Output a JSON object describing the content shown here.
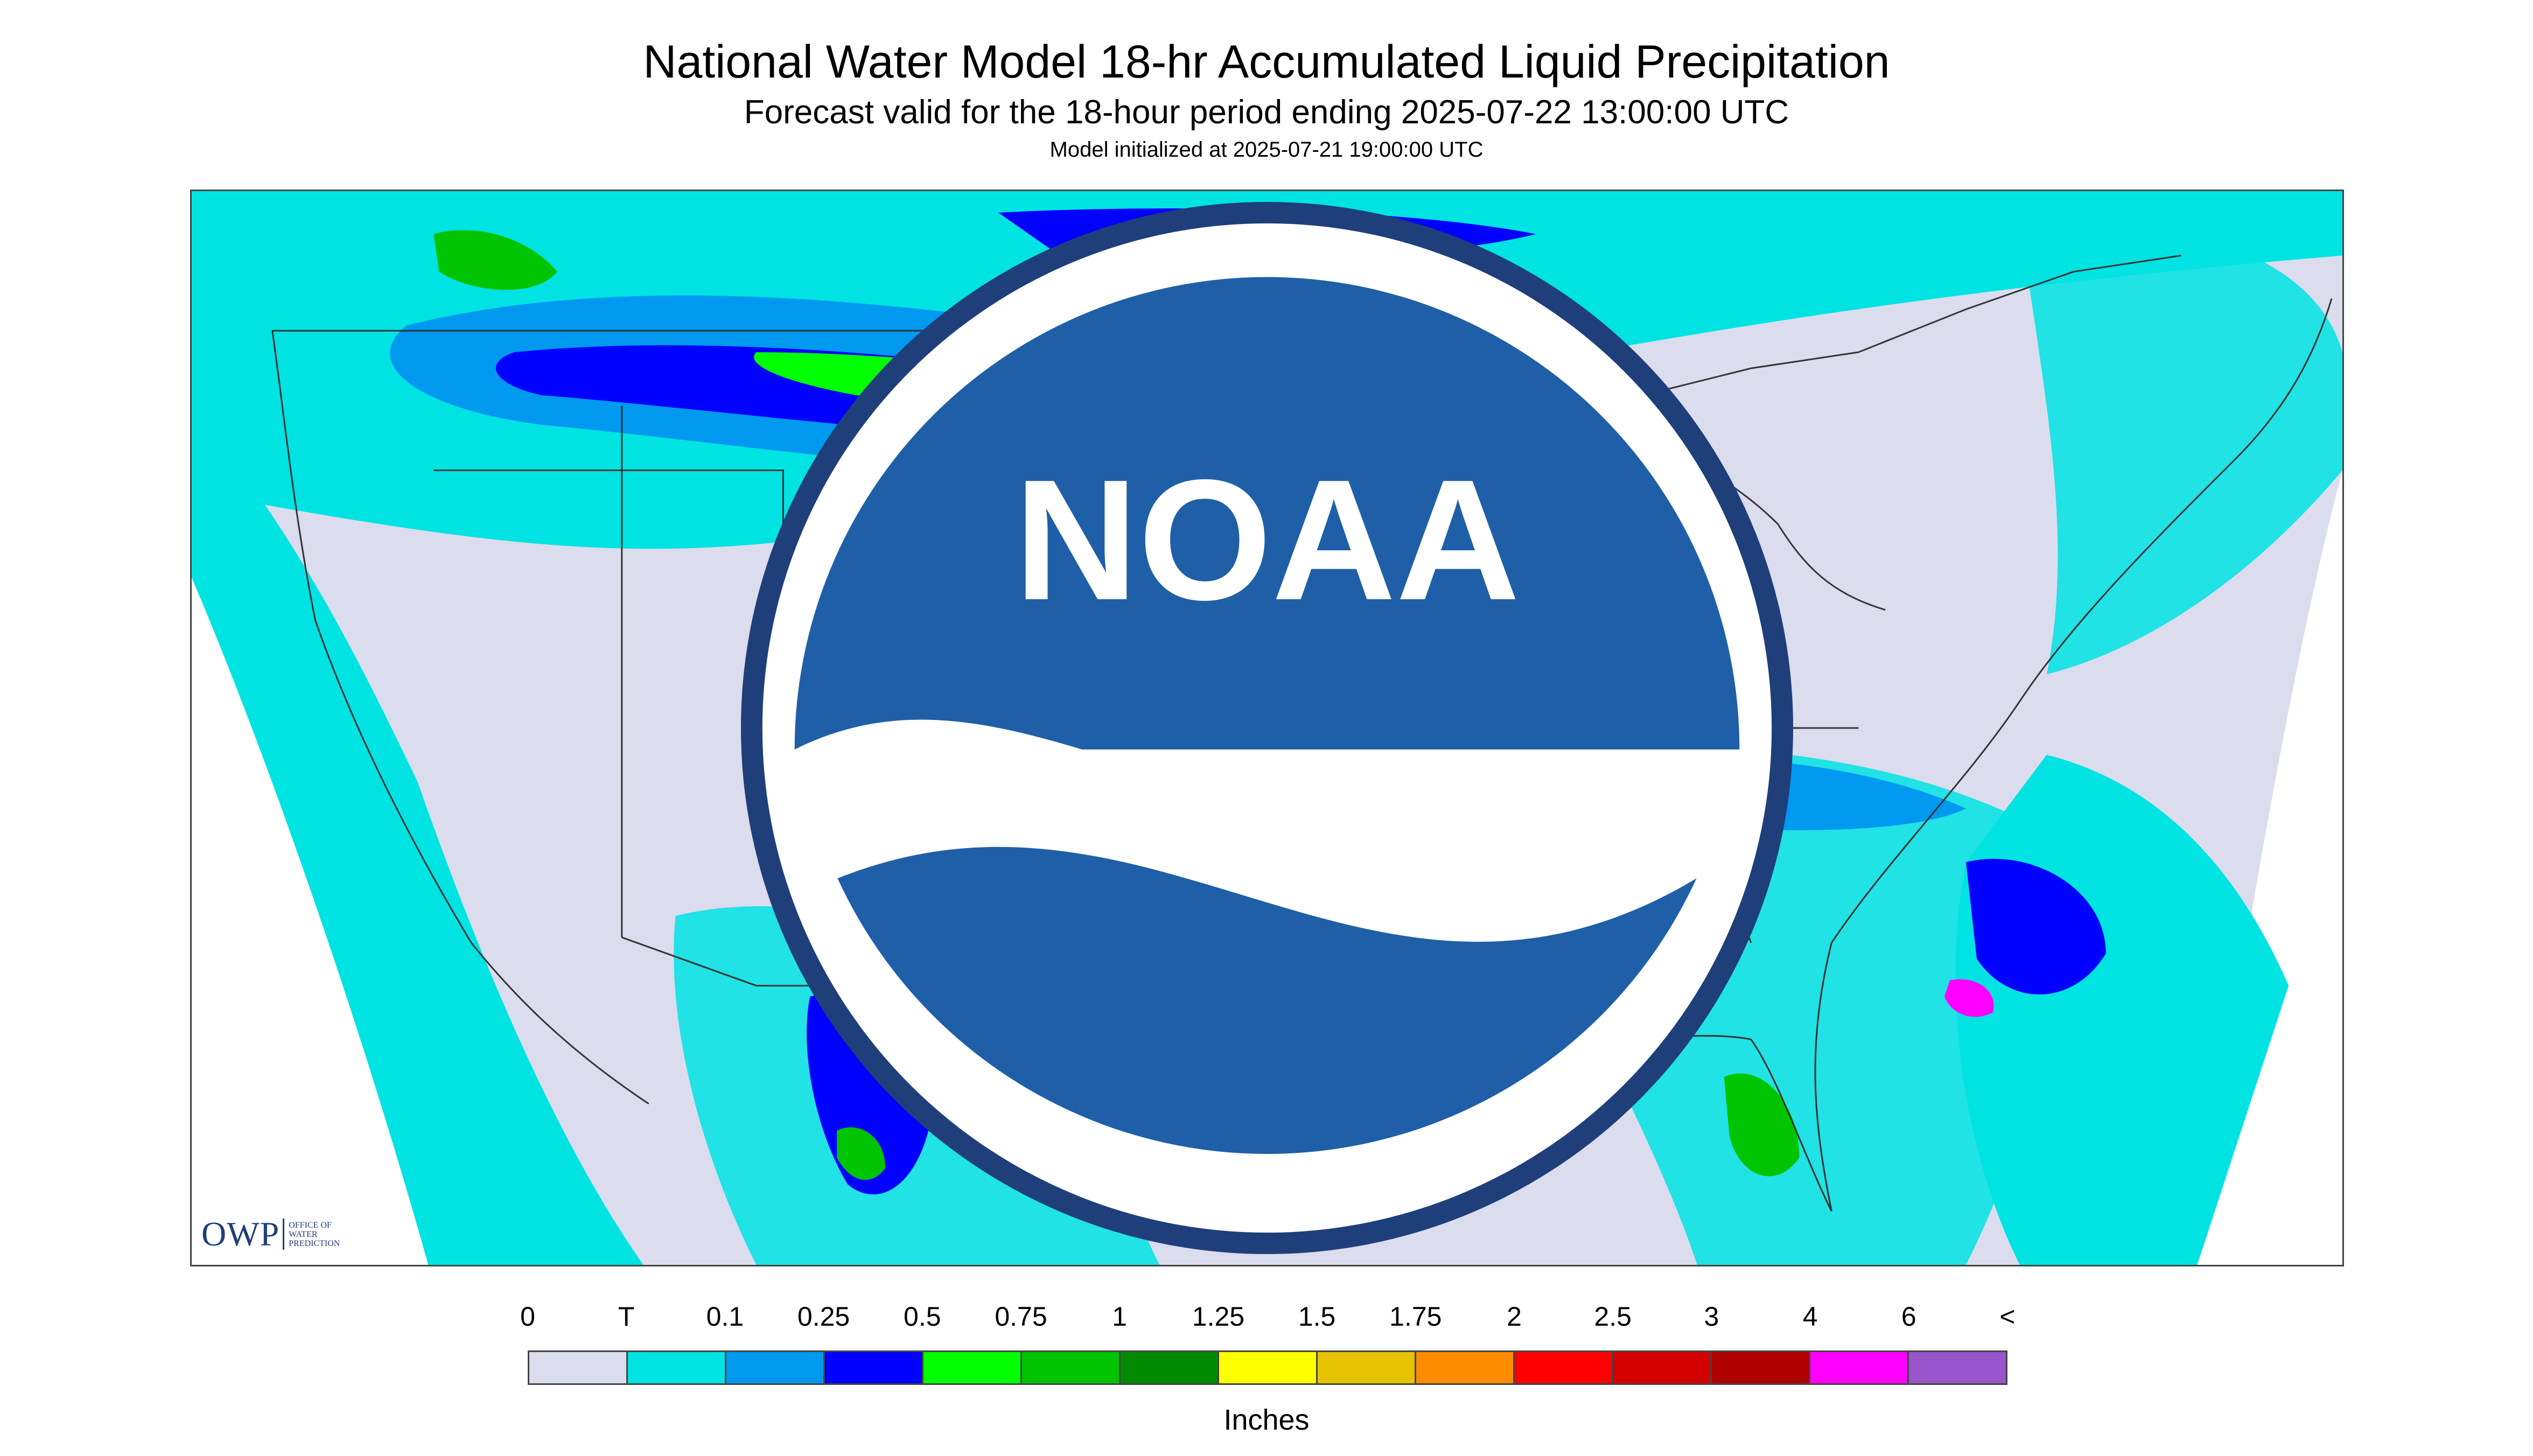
{
  "title": "National Water Model 18-hr Accumulated Liquid Precipitation",
  "subtitle": "Forecast valid for the 18-hour period ending 2025-07-22 13:00:00 UTC",
  "init_time": "Model initialized at 2025-07-21 19:00:00 UTC",
  "logos": {
    "owp": {
      "text": "OWP",
      "sub_lines": [
        "OFFICE OF",
        "WATER",
        "PREDICTION"
      ]
    },
    "noaa": {
      "text": "NOAA"
    }
  },
  "legend": {
    "labels": [
      "0",
      "T",
      "0.1",
      "0.25",
      "0.5",
      "0.75",
      "1",
      "1.25",
      "1.5",
      "1.75",
      "2",
      "2.5",
      "3",
      "4",
      "6",
      "<"
    ],
    "colors": [
      "#dcdcef",
      "#00e3e3",
      "#0099f0",
      "#0000ff",
      "#00ff00",
      "#00c400",
      "#008a00",
      "#ffff00",
      "#e6c300",
      "#ff8c00",
      "#ff0000",
      "#d40000",
      "#b00000",
      "#ff00ff",
      "#9955cc"
    ],
    "units": "Inches"
  },
  "map": {
    "background_color": "#dcdcef",
    "offdomain_color": "#ffffff",
    "trace_color": "#00e3e3",
    "boundary_color": "#333333"
  }
}
